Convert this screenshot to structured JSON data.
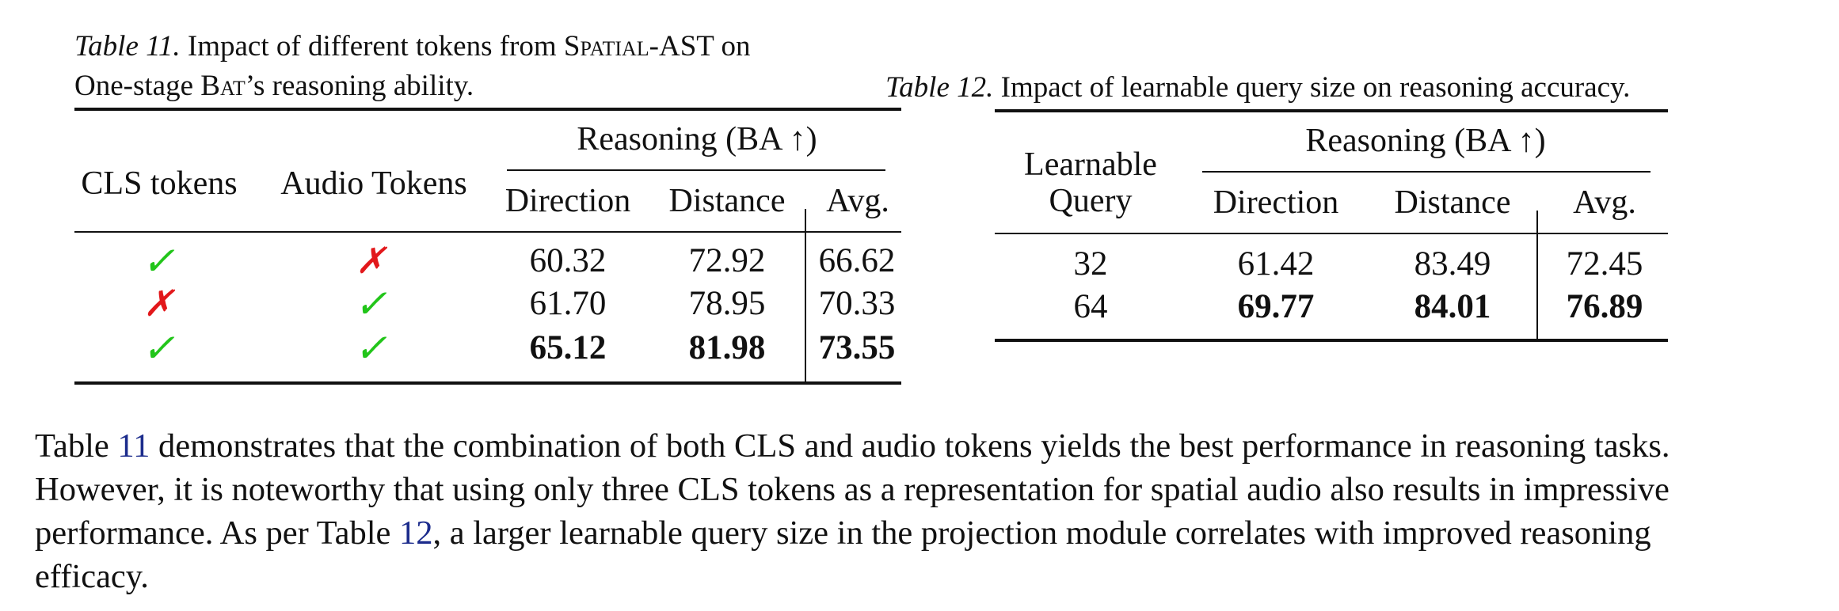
{
  "table11": {
    "caption_label": "Table 11.",
    "caption_line1_a": "Impact of different tokens from",
    "caption_sc": "Spatial",
    "caption_line1_b": "-AST on",
    "caption_line2_a": "One-stage",
    "caption_bat_b": "B",
    "caption_bat_sc": "at",
    "caption_line2_b": "’s reasoning ability.",
    "headers": {
      "cls": "CLS tokens",
      "audio": "Audio Tokens",
      "group": "Reasoning (BA ↑)",
      "direction": "Direction",
      "distance": "Distance",
      "avg": "Avg."
    },
    "rows": [
      {
        "cls": "✓",
        "audio": "✗",
        "direction": "60.32",
        "distance": "72.92",
        "avg": "66.62"
      },
      {
        "cls": "✗",
        "audio": "✓",
        "direction": "61.70",
        "distance": "78.95",
        "avg": "70.33"
      },
      {
        "cls": "✓",
        "audio": "✓",
        "direction": "65.12",
        "distance": "81.98",
        "avg": "73.55"
      }
    ]
  },
  "table12": {
    "caption_label": "Table 12.",
    "caption_text": "Impact of learnable query size on reasoning accuracy.",
    "headers": {
      "query_line1": "Learnable",
      "query_line2": "Query",
      "group": "Reasoning (BA ↑)",
      "direction": "Direction",
      "distance": "Distance",
      "avg": "Avg."
    },
    "rows": [
      {
        "query": "32",
        "direction": "61.42",
        "distance": "83.49",
        "avg": "72.45"
      },
      {
        "query": "64",
        "direction": "69.77",
        "distance": "84.01",
        "avg": "76.89"
      }
    ]
  },
  "paragraph": {
    "l1_a": "Table",
    "l1_ref": "11",
    "l1_b": "demonstrates that the combination of both CLS and audio tokens yields the best performance in reasoning tasks.",
    "l2": "However, it is noteworthy that using only three CLS tokens as a representation for spatial audio also results in impressive",
    "l3_a": "performance. As per Table",
    "l3_ref": "12",
    "l3_b": ", a larger learnable query size in the projection module correlates with improved reasoning",
    "l4": "efficacy."
  },
  "colors": {
    "check": "#22c51a",
    "cross": "#e2181b",
    "ref": "#1c2c8c"
  }
}
